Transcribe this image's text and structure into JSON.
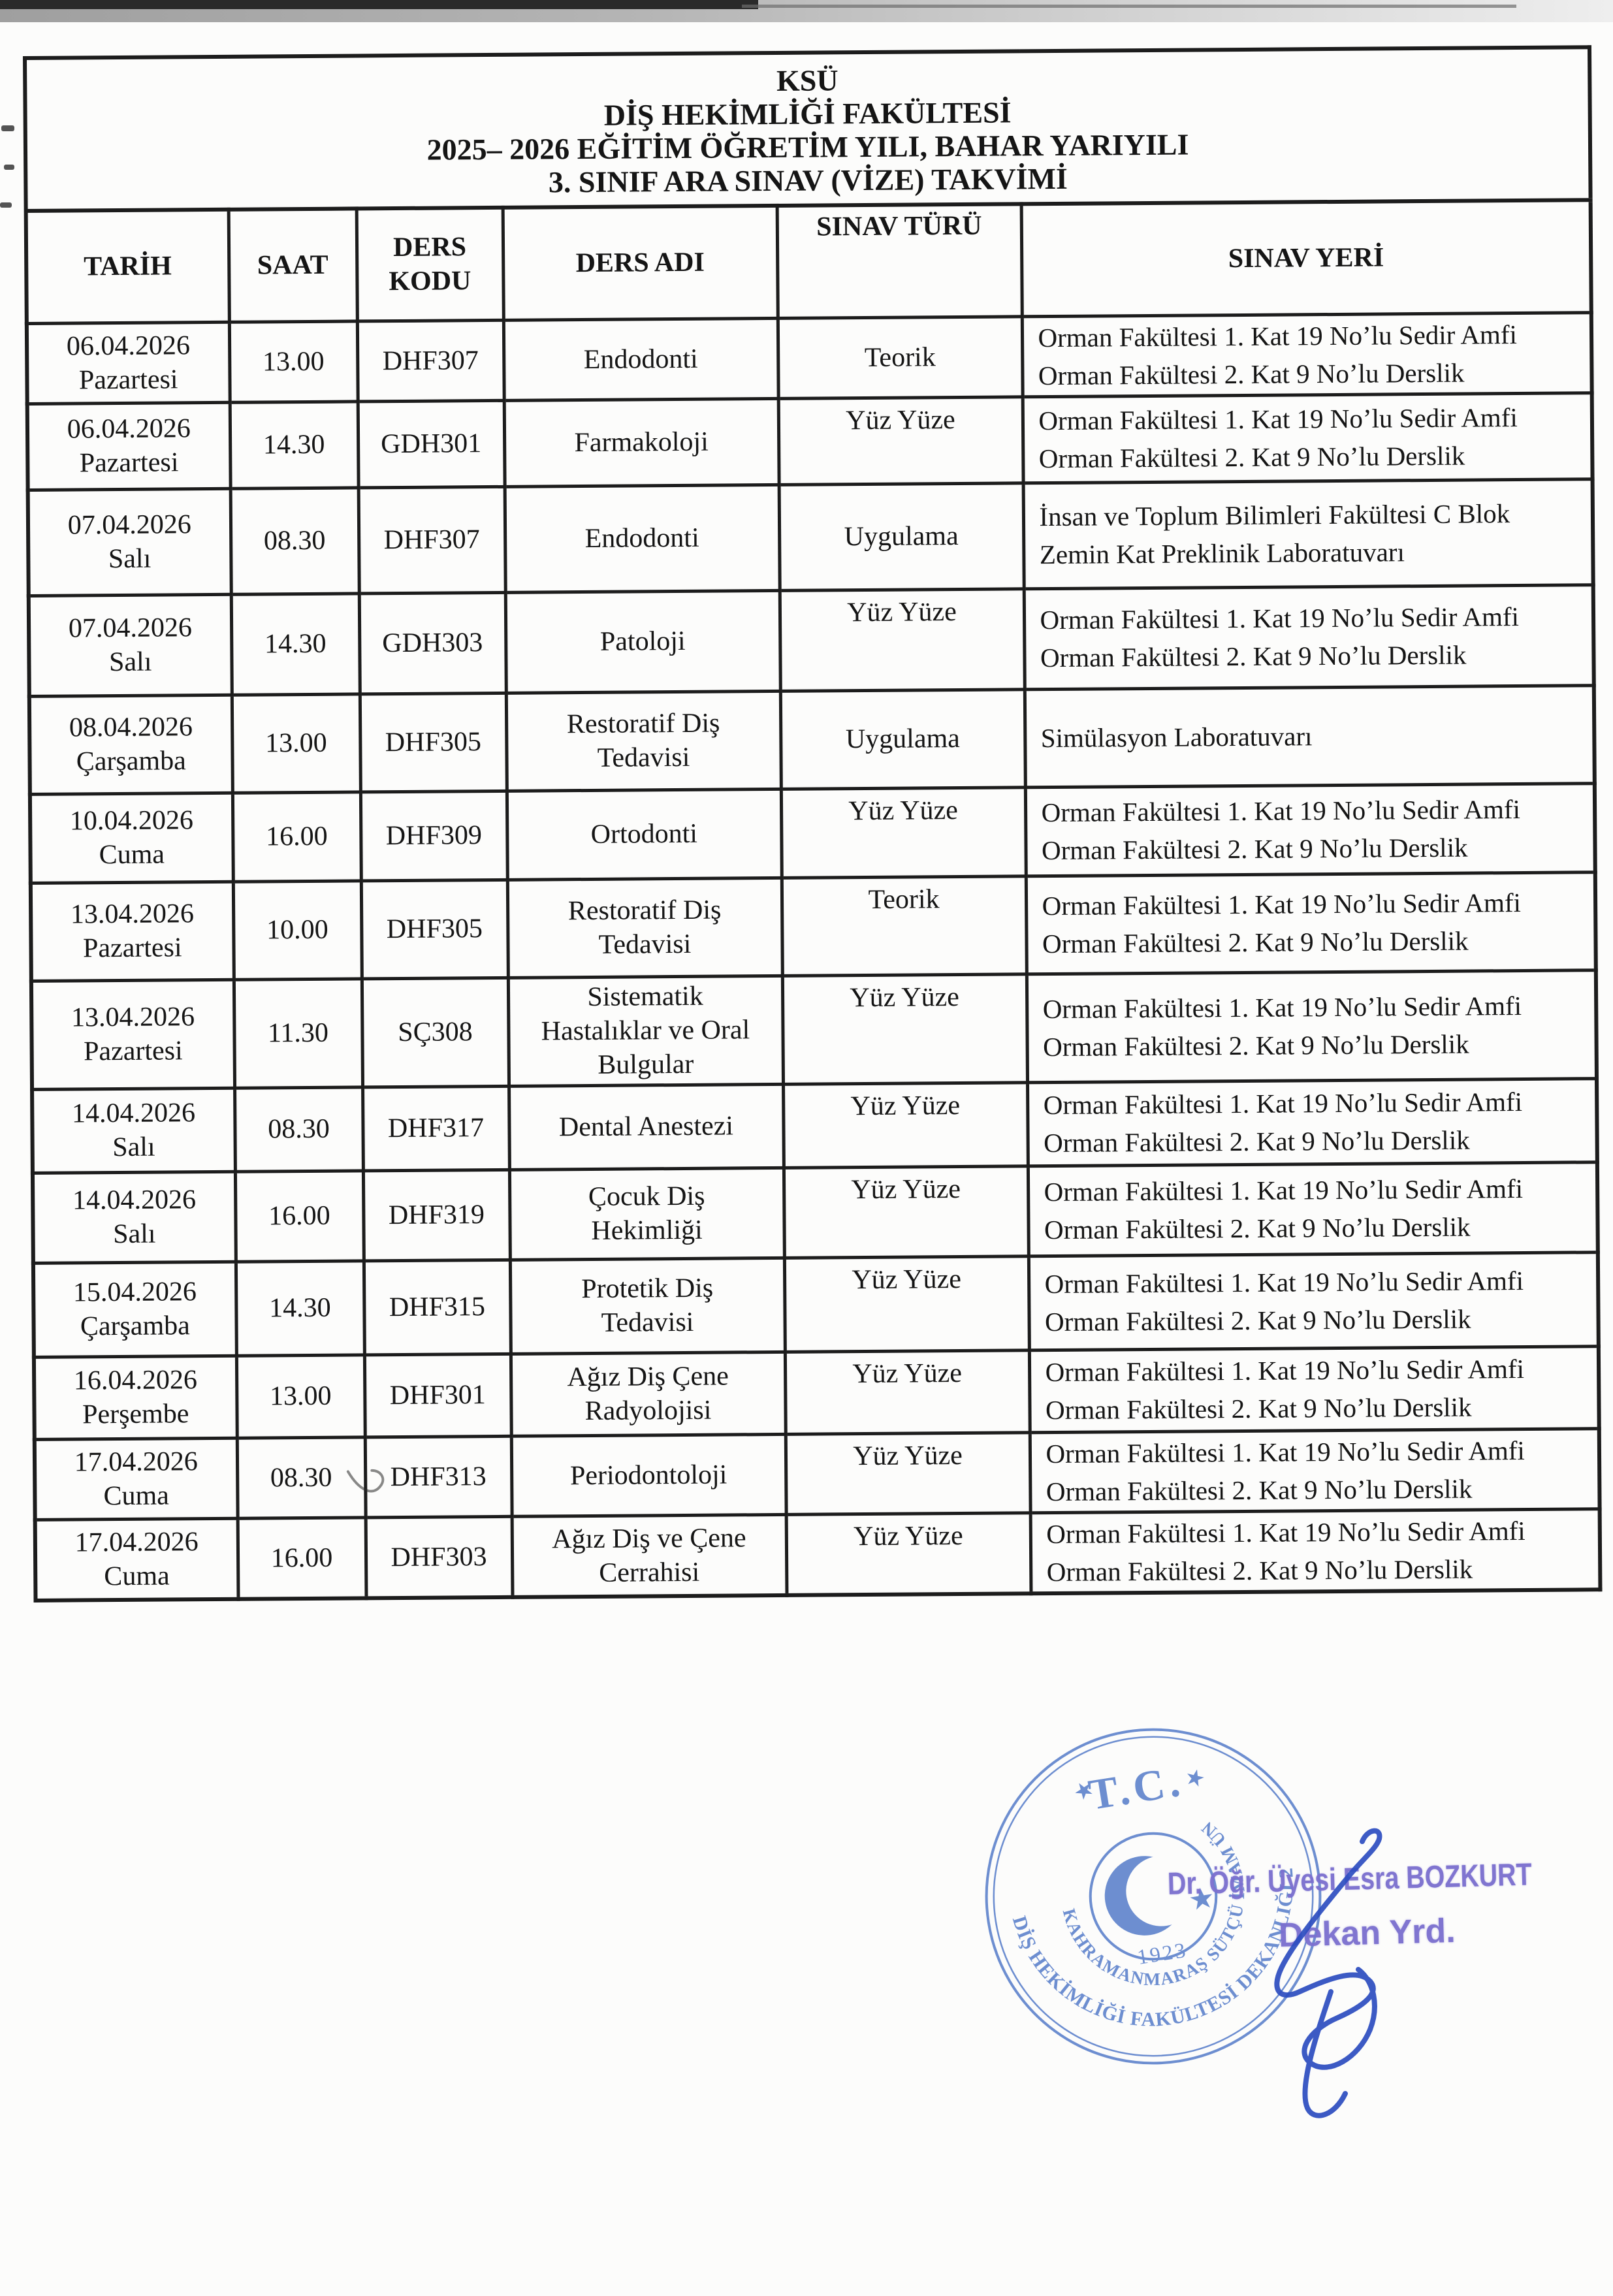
{
  "document": {
    "title_lines": [
      "KSÜ",
      "DİŞ HEKİMLİĞİ FAKÜLTESİ",
      "2025– 2026 EĞİTİM ÖĞRETİM YILI, BAHAR YARIYILI",
      "3. SINIF ARA SINAV (VİZE) TAKVİMİ"
    ]
  },
  "table": {
    "headers": [
      "TARİH",
      "SAAT",
      "DERS KODU",
      "DERS ADI",
      "SINAV TÜRÜ",
      "SINAV YERİ"
    ],
    "rows": [
      {
        "date": "06.04.2026",
        "day": "Pazartesi",
        "time": "13.00",
        "code": "DHF307",
        "course": "Endodonti",
        "type": "Teorik",
        "type_align": "middle",
        "location": [
          "Orman Fakültesi 1. Kat 19 No’lu Sedir Amfi",
          "Orman Fakültesi 2. Kat 9 No’lu Derslik"
        ]
      },
      {
        "date": "06.04.2026",
        "day": "Pazartesi",
        "time": "14.30",
        "code": "GDH301",
        "course": "Farmakoloji",
        "type": "Yüz Yüze",
        "type_align": "top",
        "location": [
          "Orman Fakültesi 1. Kat 19 No’lu Sedir Amfi",
          "Orman Fakültesi 2. Kat 9 No’lu Derslik"
        ]
      },
      {
        "date": "07.04.2026",
        "day": "Salı",
        "time": "08.30",
        "code": "DHF307",
        "course": "Endodonti",
        "type": "Uygulama",
        "type_align": "middle",
        "location": [
          "İnsan ve Toplum Bilimleri Fakültesi C Blok",
          "Zemin Kat Preklinik Laboratuvarı"
        ]
      },
      {
        "date": "07.04.2026",
        "day": "Salı",
        "time": "14.30",
        "code": "GDH303",
        "course": "Patoloji",
        "type": "Yüz Yüze",
        "type_align": "top",
        "location": [
          "Orman Fakültesi 1. Kat 19 No’lu Sedir Amfi",
          "Orman Fakültesi 2. Kat 9 No’lu Derslik"
        ]
      },
      {
        "date": "08.04.2026",
        "day": "Çarşamba",
        "time": "13.00",
        "code": "DHF305",
        "course": "Restoratif Diş Tedavisi",
        "type": "Uygulama",
        "type_align": "middle",
        "location": [
          "Simülasyon Laboratuvarı"
        ]
      },
      {
        "date": "10.04.2026",
        "day": "Cuma",
        "time": "16.00",
        "code": "DHF309",
        "course": "Ortodonti",
        "type": "Yüz Yüze",
        "type_align": "top",
        "location": [
          "Orman Fakültesi 1. Kat 19 No’lu Sedir Amfi",
          "Orman Fakültesi 2. Kat 9 No’lu Derslik"
        ]
      },
      {
        "date": "13.04.2026",
        "day": "Pazartesi",
        "time": "10.00",
        "code": "DHF305",
        "course": "Restoratif Diş Tedavisi",
        "type": "Teorik",
        "type_align": "top",
        "location": [
          "Orman Fakültesi 1. Kat 19 No’lu Sedir Amfi",
          "Orman Fakültesi 2. Kat 9 No’lu Derslik"
        ]
      },
      {
        "date": "13.04.2026",
        "day": "Pazartesi",
        "time": "11.30",
        "code": "SÇ308",
        "course": "Sistematik Hastalıklar ve Oral Bulgular",
        "type": "Yüz Yüze",
        "type_align": "top",
        "location": [
          "Orman Fakültesi 1. Kat 19 No’lu Sedir Amfi",
          "Orman Fakültesi 2. Kat 9 No’lu Derslik"
        ]
      },
      {
        "date": "14.04.2026",
        "day": "Salı",
        "time": "08.30",
        "code": "DHF317",
        "course": "Dental Anestezi",
        "type": "Yüz Yüze",
        "type_align": "top",
        "location": [
          "Orman Fakültesi 1. Kat 19 No’lu Sedir Amfi",
          "Orman Fakültesi 2. Kat 9 No’lu Derslik"
        ]
      },
      {
        "date": "14.04.2026",
        "day": "Salı",
        "time": "16.00",
        "code": "DHF319",
        "course": "Çocuk Diş Hekimliği",
        "type": "Yüz Yüze",
        "type_align": "top",
        "location": [
          "Orman Fakültesi 1. Kat 19 No’lu Sedir Amfi",
          "Orman Fakültesi 2. Kat 9 No’lu Derslik"
        ]
      },
      {
        "date": "15.04.2026",
        "day": "Çarşamba",
        "time": "14.30",
        "code": "DHF315",
        "course": "Protetik Diş Tedavisi",
        "type": "Yüz Yüze",
        "type_align": "top",
        "location": [
          "Orman Fakültesi 1. Kat 19 No’lu Sedir Amfi",
          "Orman Fakültesi 2. Kat 9 No’lu Derslik"
        ]
      },
      {
        "date": "16.04.2026",
        "day": "Perşembe",
        "time": "13.00",
        "code": "DHF301",
        "course": "Ağız Diş Çene Radyolojisi",
        "type": "Yüz Yüze",
        "type_align": "top",
        "location": [
          "Orman Fakültesi 1. Kat 19 No’lu Sedir Amfi",
          "Orman Fakültesi 2. Kat 9 No’lu Derslik"
        ]
      },
      {
        "date": "17.04.2026",
        "day": "Cuma",
        "time": "08.30",
        "code": "DHF313",
        "course": "Periodontoloji",
        "type": "Yüz Yüze",
        "type_align": "top",
        "location": [
          "Orman Fakültesi 1. Kat 19 No’lu Sedir Amfi",
          "Orman Fakültesi 2. Kat 9 No’lu Derslik"
        ]
      },
      {
        "date": "17.04.2026",
        "day": "Cuma",
        "time": "16.00",
        "code": "DHF303",
        "course": "Ağız Diş ve Çene Cerrahisi",
        "type": "Yüz Yüze",
        "type_align": "top",
        "location": [
          "Orman Fakültesi 1. Kat 19 No’lu Sedir Amfi",
          "Orman Fakültesi 2. Kat 9 No’lu Derslik"
        ]
      }
    ]
  },
  "stamp": {
    "top_text": "T.C.",
    "year": "1923",
    "ring_inner_text": "KAHRAMANMARAŞ SÜTÇÜ İMAM ÜNİ.",
    "ring_outer_text": "DİŞ HEKİMLİĞİ FAKÜLTESİ DEKANLIĞI 2",
    "color": "#5a7fcb"
  },
  "signer": {
    "name": "Dr. Öğr. Üyesi Esra BOZKURT",
    "role": "Dekan Yrd.",
    "ink_color": "#2c4dc0",
    "stamp_text_color": "#7b70cf"
  }
}
